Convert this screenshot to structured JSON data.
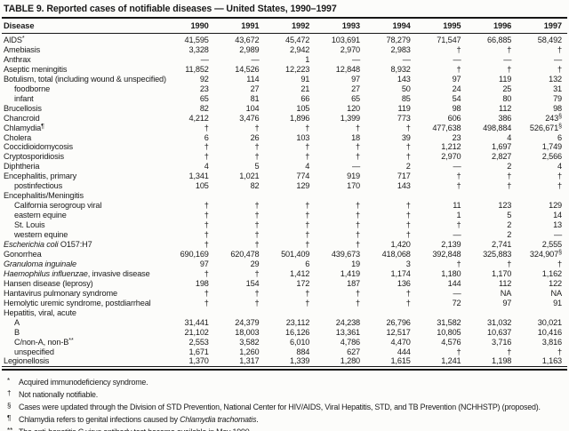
{
  "title": "TABLE 9. Reported cases of notifiable diseases — United States, 1990–1997",
  "table": {
    "columns": [
      "Disease",
      "1990",
      "1991",
      "1992",
      "1993",
      "1994",
      "1995",
      "1996",
      "1997"
    ],
    "rows": [
      {
        "label": [
          {
            "t": "AIDS"
          },
          {
            "t": "*",
            "sup": true
          }
        ],
        "indent": 0,
        "values": [
          "41,595",
          "43,672",
          "45,472",
          "103,691",
          "78,279",
          "71,547",
          "66,885",
          "58,492"
        ]
      },
      {
        "label": [
          {
            "t": "Amebiasis"
          }
        ],
        "indent": 0,
        "values": [
          "3,328",
          "2,989",
          "2,942",
          "2,970",
          "2,983",
          "†",
          "†",
          "†"
        ]
      },
      {
        "label": [
          {
            "t": "Anthrax"
          }
        ],
        "indent": 0,
        "values": [
          "—",
          "—",
          "1",
          "—",
          "—",
          "—",
          "—",
          "—"
        ]
      },
      {
        "label": [
          {
            "t": "Aseptic meningitis"
          }
        ],
        "indent": 0,
        "values": [
          "11,852",
          "14,526",
          "12,223",
          "12,848",
          "8,932",
          "†",
          "†",
          "†"
        ]
      },
      {
        "label": [
          {
            "t": "Botulism, total (including wound & unspecified)"
          }
        ],
        "indent": 0,
        "values": [
          "92",
          "114",
          "91",
          "97",
          "143",
          "97",
          "119",
          "132"
        ]
      },
      {
        "label": [
          {
            "t": "foodborne"
          }
        ],
        "indent": 1,
        "values": [
          "23",
          "27",
          "21",
          "27",
          "50",
          "24",
          "25",
          "31"
        ]
      },
      {
        "label": [
          {
            "t": "infant"
          }
        ],
        "indent": 1,
        "values": [
          "65",
          "81",
          "66",
          "65",
          "85",
          "54",
          "80",
          "79"
        ]
      },
      {
        "label": [
          {
            "t": "Brucellosis"
          }
        ],
        "indent": 0,
        "values": [
          "82",
          "104",
          "105",
          "120",
          "119",
          "98",
          "112",
          "98"
        ]
      },
      {
        "label": [
          {
            "t": "Chancroid"
          }
        ],
        "indent": 0,
        "values": [
          "4,212",
          "3,476",
          "1,896",
          "1,399",
          "773",
          "606",
          "386",
          "243§"
        ]
      },
      {
        "label": [
          {
            "t": "Chlamydia"
          },
          {
            "t": "¶",
            "sup": true
          }
        ],
        "indent": 0,
        "values": [
          "†",
          "†",
          "†",
          "†",
          "†",
          "477,638",
          "498,884",
          "526,671§"
        ]
      },
      {
        "label": [
          {
            "t": "Cholera"
          }
        ],
        "indent": 0,
        "values": [
          "6",
          "26",
          "103",
          "18",
          "39",
          "23",
          "4",
          "6"
        ]
      },
      {
        "label": [
          {
            "t": "Coccidioidomycosis"
          }
        ],
        "indent": 0,
        "values": [
          "†",
          "†",
          "†",
          "†",
          "†",
          "1,212",
          "1,697",
          "1,749"
        ]
      },
      {
        "label": [
          {
            "t": "Cryptosporidiosis"
          }
        ],
        "indent": 0,
        "values": [
          "†",
          "†",
          "†",
          "†",
          "†",
          "2,970",
          "2,827",
          "2,566"
        ]
      },
      {
        "label": [
          {
            "t": "Diphtheria"
          }
        ],
        "indent": 0,
        "values": [
          "4",
          "5",
          "4",
          "—",
          "2",
          "—",
          "2",
          "4"
        ]
      },
      {
        "label": [
          {
            "t": "Encephalitis, primary"
          }
        ],
        "indent": 0,
        "values": [
          "1,341",
          "1,021",
          "774",
          "919",
          "717",
          "†",
          "†",
          "†"
        ]
      },
      {
        "label": [
          {
            "t": "postinfectious"
          }
        ],
        "indent": 1,
        "values": [
          "105",
          "82",
          "129",
          "170",
          "143",
          "†",
          "†",
          "†"
        ]
      },
      {
        "label": [
          {
            "t": "Encephalitis/Meningitis"
          }
        ],
        "indent": 0,
        "values": [
          "",
          "",
          "",
          "",
          "",
          "",
          "",
          ""
        ]
      },
      {
        "label": [
          {
            "t": "California serogroup viral"
          }
        ],
        "indent": 1,
        "values": [
          "†",
          "†",
          "†",
          "†",
          "†",
          "11",
          "123",
          "129"
        ]
      },
      {
        "label": [
          {
            "t": "eastern equine"
          }
        ],
        "indent": 1,
        "values": [
          "†",
          "†",
          "†",
          "†",
          "†",
          "1",
          "5",
          "14"
        ]
      },
      {
        "label": [
          {
            "t": "St. Louis"
          }
        ],
        "indent": 1,
        "values": [
          "†",
          "†",
          "†",
          "†",
          "†",
          "†",
          "2",
          "13"
        ]
      },
      {
        "label": [
          {
            "t": "western equine"
          }
        ],
        "indent": 1,
        "values": [
          "†",
          "†",
          "†",
          "†",
          "†",
          "—",
          "2",
          "—"
        ]
      },
      {
        "label": [
          {
            "t": "Escherichia coli",
            "italic": true
          },
          {
            "t": " O157:H7"
          }
        ],
        "indent": 0,
        "values": [
          "†",
          "†",
          "†",
          "†",
          "1,420",
          "2,139",
          "2,741",
          "2,555"
        ]
      },
      {
        "label": [
          {
            "t": "Gonorrhea"
          }
        ],
        "indent": 0,
        "values": [
          "690,169",
          "620,478",
          "501,409",
          "439,673",
          "418,068",
          "392,848",
          "325,883",
          "324,907§"
        ]
      },
      {
        "label": [
          {
            "t": "Granuloma inguinale",
            "italic": true
          }
        ],
        "indent": 0,
        "values": [
          "97",
          "29",
          "6",
          "19",
          "3",
          "†",
          "†",
          "†"
        ]
      },
      {
        "label": [
          {
            "t": "Haemophilus influenzae",
            "italic": true
          },
          {
            "t": ", invasive disease"
          }
        ],
        "indent": 0,
        "values": [
          "†",
          "†",
          "1,412",
          "1,419",
          "1,174",
          "1,180",
          "1,170",
          "1,162"
        ]
      },
      {
        "label": [
          {
            "t": "Hansen disease (leprosy)"
          }
        ],
        "indent": 0,
        "values": [
          "198",
          "154",
          "172",
          "187",
          "136",
          "144",
          "112",
          "122"
        ]
      },
      {
        "label": [
          {
            "t": "Hantavirus pulmonary syndrome"
          }
        ],
        "indent": 0,
        "values": [
          "†",
          "†",
          "†",
          "†",
          "†",
          "—",
          "NA",
          "NA"
        ]
      },
      {
        "label": [
          {
            "t": "Hemolytic uremic syndrome, postdiarrheal"
          }
        ],
        "indent": 0,
        "values": [
          "†",
          "†",
          "†",
          "†",
          "†",
          "72",
          "97",
          "91"
        ]
      },
      {
        "label": [
          {
            "t": "Hepatitis, viral, acute"
          }
        ],
        "indent": 0,
        "values": [
          "",
          "",
          "",
          "",
          "",
          "",
          "",
          ""
        ]
      },
      {
        "label": [
          {
            "t": "A"
          }
        ],
        "indent": 1,
        "values": [
          "31,441",
          "24,379",
          "23,112",
          "24,238",
          "26,796",
          "31,582",
          "31,032",
          "30,021"
        ]
      },
      {
        "label": [
          {
            "t": "B"
          }
        ],
        "indent": 1,
        "values": [
          "21,102",
          "18,003",
          "16,126",
          "13,361",
          "12,517",
          "10,805",
          "10,637",
          "10,416"
        ]
      },
      {
        "label": [
          {
            "t": "C/non-A, non-B"
          },
          {
            "t": "**",
            "sup": true
          }
        ],
        "indent": 1,
        "values": [
          "2,553",
          "3,582",
          "6,010",
          "4,786",
          "4,470",
          "4,576",
          "3,716",
          "3,816"
        ]
      },
      {
        "label": [
          {
            "t": "unspecified"
          }
        ],
        "indent": 1,
        "values": [
          "1,671",
          "1,260",
          "884",
          "627",
          "444",
          "†",
          "†",
          "†"
        ]
      },
      {
        "label": [
          {
            "t": "Legionellosis"
          }
        ],
        "indent": 0,
        "values": [
          "1,370",
          "1,317",
          "1,339",
          "1,280",
          "1,615",
          "1,241",
          "1,198",
          "1,163"
        ]
      }
    ]
  },
  "footnotes": [
    {
      "marker": "*",
      "parts": [
        {
          "t": "Acquired immunodeficiency syndrome."
        }
      ]
    },
    {
      "marker": "†",
      "parts": [
        {
          "t": "Not nationally notifiable."
        }
      ]
    },
    {
      "marker": "§",
      "parts": [
        {
          "t": "Cases were updated through the Division of STD Prevention, National Center for HIV/AIDS, Viral Hepatitis, STD, and TB Prevention (NCHHSTP) (proposed)."
        }
      ]
    },
    {
      "marker": "¶",
      "parts": [
        {
          "t": "Chlamydia refers to genital infections caused by "
        },
        {
          "t": "Chlamydia trachomatis",
          "italic": true
        },
        {
          "t": "."
        }
      ]
    },
    {
      "marker": "**",
      "parts": [
        {
          "t": "The anti-hepatitis C virus antibody test became available in May 1990."
        }
      ]
    }
  ]
}
